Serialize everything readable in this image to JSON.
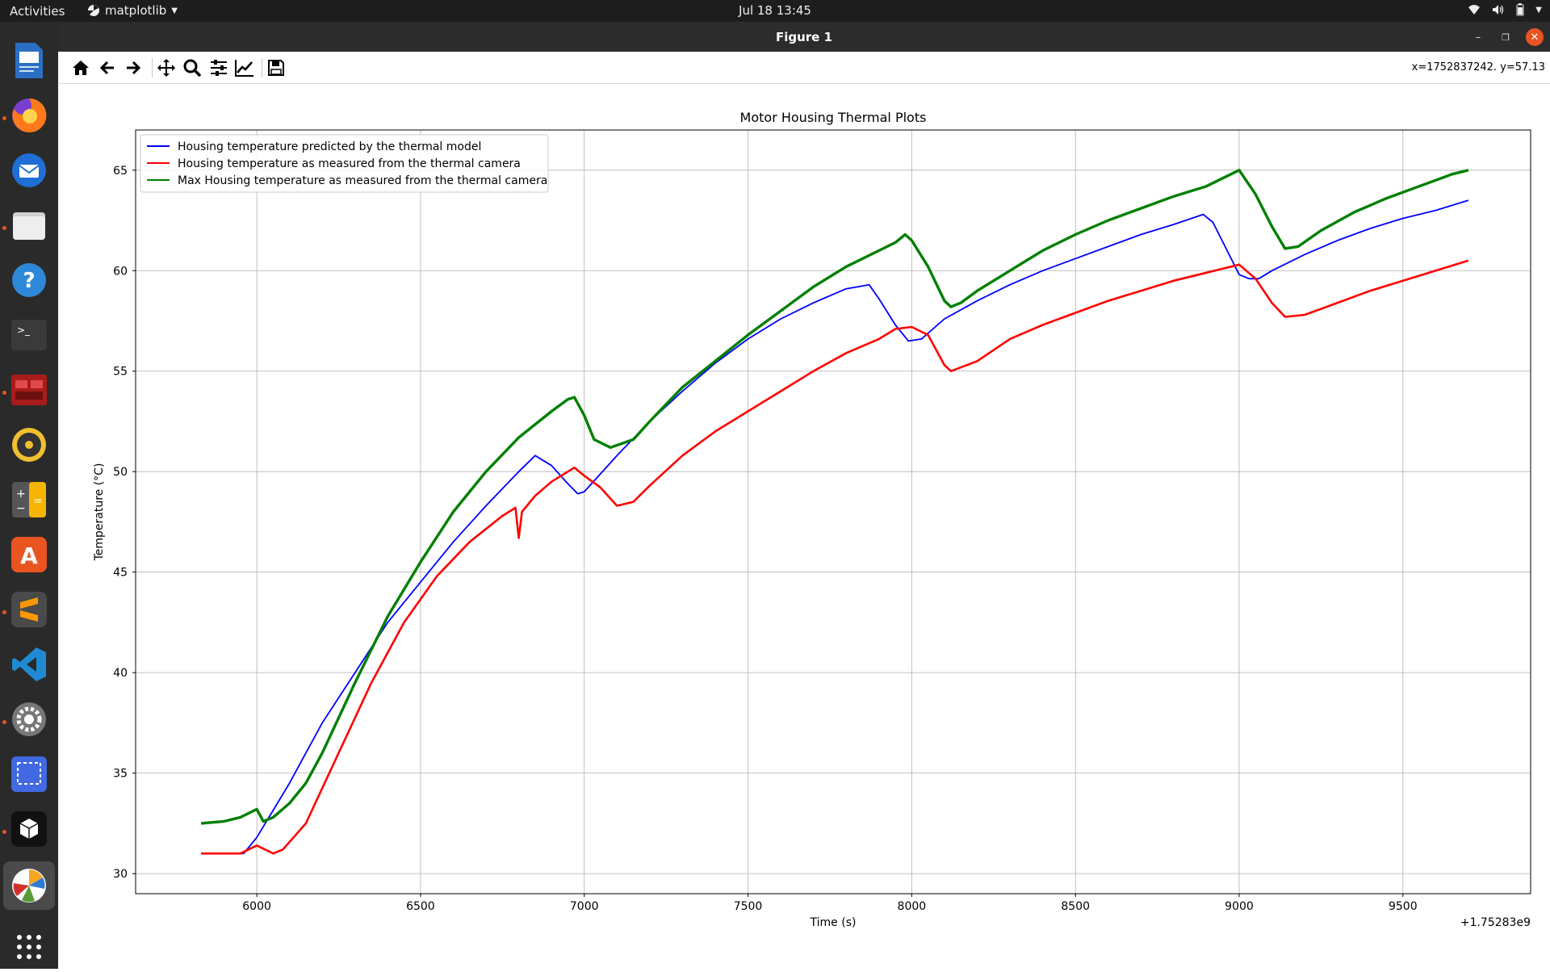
{
  "topbar": {
    "activities": "Activities",
    "app_name": "matplotlib",
    "clock": "Jul 18  13:45"
  },
  "window": {
    "title": "Figure 1",
    "coords_readout": "x=1752837242. y=57.13"
  },
  "toolbar": {
    "buttons": [
      "home-icon",
      "back-icon",
      "forward-icon",
      "pan-icon",
      "zoom-icon",
      "configure-subplots-icon",
      "edit-axis-icon",
      "save-icon"
    ]
  },
  "dock": {
    "apps": [
      "libreoffice-writer",
      "firefox",
      "thunderbird",
      "files",
      "help",
      "terminal",
      "app-red",
      "rhythmbox",
      "calculator",
      "app-center",
      "sublime-text",
      "vscode",
      "settings",
      "screenshot",
      "inkscape-cube",
      "matplotlib"
    ]
  },
  "colors": {
    "model": "#0000ff",
    "measured": "#ff0000",
    "max_measured": "#008000"
  },
  "chart_data": {
    "type": "line",
    "title": "Motor Housing Thermal Plots",
    "xlabel": "Time (s)",
    "ylabel": "Temperature (°C)",
    "x_offset_label": "+1.75283e9",
    "xlim": [
      5630,
      9890
    ],
    "ylim": [
      29,
      67
    ],
    "xticks": [
      6000,
      6500,
      7000,
      7500,
      8000,
      8500,
      9000,
      9500
    ],
    "yticks": [
      30,
      35,
      40,
      45,
      50,
      55,
      60,
      65
    ],
    "grid": true,
    "legend_position": "upper-left",
    "series": [
      {
        "name": "Housing temperature predicted by the thermal model",
        "color": "#0000ff",
        "x": [
          5830,
          5900,
          5960,
          6000,
          6100,
          6200,
          6300,
          6400,
          6500,
          6600,
          6700,
          6800,
          6850,
          6900,
          6950,
          6980,
          7000,
          7100,
          7200,
          7300,
          7400,
          7500,
          7600,
          7700,
          7800,
          7870,
          7900,
          7950,
          7990,
          8030,
          8100,
          8200,
          8300,
          8400,
          8500,
          8600,
          8700,
          8800,
          8890,
          8920,
          8960,
          9000,
          9030,
          9060,
          9100,
          9200,
          9300,
          9400,
          9500,
          9600,
          9700
        ],
        "y": [
          31.0,
          31.0,
          31.0,
          31.8,
          34.5,
          37.5,
          40.0,
          42.5,
          44.5,
          46.5,
          48.3,
          50.0,
          50.8,
          50.3,
          49.4,
          48.9,
          49.0,
          50.8,
          52.5,
          54.0,
          55.4,
          56.6,
          57.6,
          58.4,
          59.1,
          59.3,
          58.6,
          57.3,
          56.5,
          56.6,
          57.6,
          58.5,
          59.3,
          60.0,
          60.6,
          61.2,
          61.8,
          62.3,
          62.8,
          62.4,
          61.1,
          59.8,
          59.6,
          59.6,
          60.0,
          60.8,
          61.5,
          62.1,
          62.6,
          63.0,
          63.5
        ]
      },
      {
        "name": "Housing temperature as measured from the thermal camera",
        "color": "#ff0000",
        "x": [
          5830,
          5900,
          5950,
          6000,
          6050,
          6080,
          6150,
          6250,
          6350,
          6450,
          6550,
          6650,
          6750,
          6790,
          6800,
          6810,
          6850,
          6900,
          6950,
          6970,
          7000,
          7050,
          7100,
          7150,
          7200,
          7300,
          7400,
          7500,
          7600,
          7700,
          7800,
          7900,
          7950,
          8000,
          8050,
          8100,
          8120,
          8200,
          8300,
          8400,
          8500,
          8600,
          8700,
          8800,
          8900,
          8950,
          9000,
          9050,
          9100,
          9140,
          9200,
          9300,
          9400,
          9500,
          9600,
          9700
        ],
        "y": [
          31.0,
          31.0,
          31.0,
          31.4,
          31.0,
          31.2,
          32.5,
          36.0,
          39.5,
          42.5,
          44.8,
          46.5,
          47.8,
          48.2,
          46.7,
          48.0,
          48.8,
          49.5,
          50.0,
          50.2,
          49.8,
          49.2,
          48.3,
          48.5,
          49.3,
          50.8,
          52.0,
          53.0,
          54.0,
          55.0,
          55.9,
          56.6,
          57.1,
          57.2,
          56.8,
          55.3,
          55.0,
          55.5,
          56.6,
          57.3,
          57.9,
          58.5,
          59.0,
          59.5,
          59.9,
          60.1,
          60.3,
          59.6,
          58.4,
          57.7,
          57.8,
          58.4,
          59.0,
          59.5,
          60.0,
          60.5
        ]
      },
      {
        "name": "Max Housing temperature as measured from the thermal camera",
        "color": "#008000",
        "x": [
          5830,
          5900,
          5950,
          6000,
          6020,
          6050,
          6100,
          6150,
          6200,
          6300,
          6400,
          6500,
          6600,
          6700,
          6800,
          6900,
          6950,
          6970,
          7000,
          7030,
          7080,
          7150,
          7200,
          7300,
          7400,
          7500,
          7600,
          7700,
          7800,
          7900,
          7950,
          7980,
          8000,
          8050,
          8100,
          8120,
          8150,
          8200,
          8300,
          8400,
          8500,
          8600,
          8700,
          8800,
          8900,
          8950,
          9000,
          9050,
          9100,
          9140,
          9180,
          9250,
          9350,
          9450,
          9550,
          9650,
          9700
        ],
        "y": [
          32.5,
          32.6,
          32.8,
          33.2,
          32.6,
          32.8,
          33.5,
          34.5,
          36.0,
          39.5,
          42.8,
          45.5,
          48.0,
          50.0,
          51.7,
          53.0,
          53.6,
          53.7,
          52.8,
          51.6,
          51.2,
          51.6,
          52.5,
          54.2,
          55.5,
          56.8,
          58.0,
          59.2,
          60.2,
          61.0,
          61.4,
          61.8,
          61.5,
          60.2,
          58.5,
          58.2,
          58.4,
          59.0,
          60.0,
          61.0,
          61.8,
          62.5,
          63.1,
          63.7,
          64.2,
          64.6,
          65.0,
          63.8,
          62.2,
          61.1,
          61.2,
          62.0,
          62.9,
          63.6,
          64.2,
          64.8,
          65.0
        ]
      }
    ]
  }
}
